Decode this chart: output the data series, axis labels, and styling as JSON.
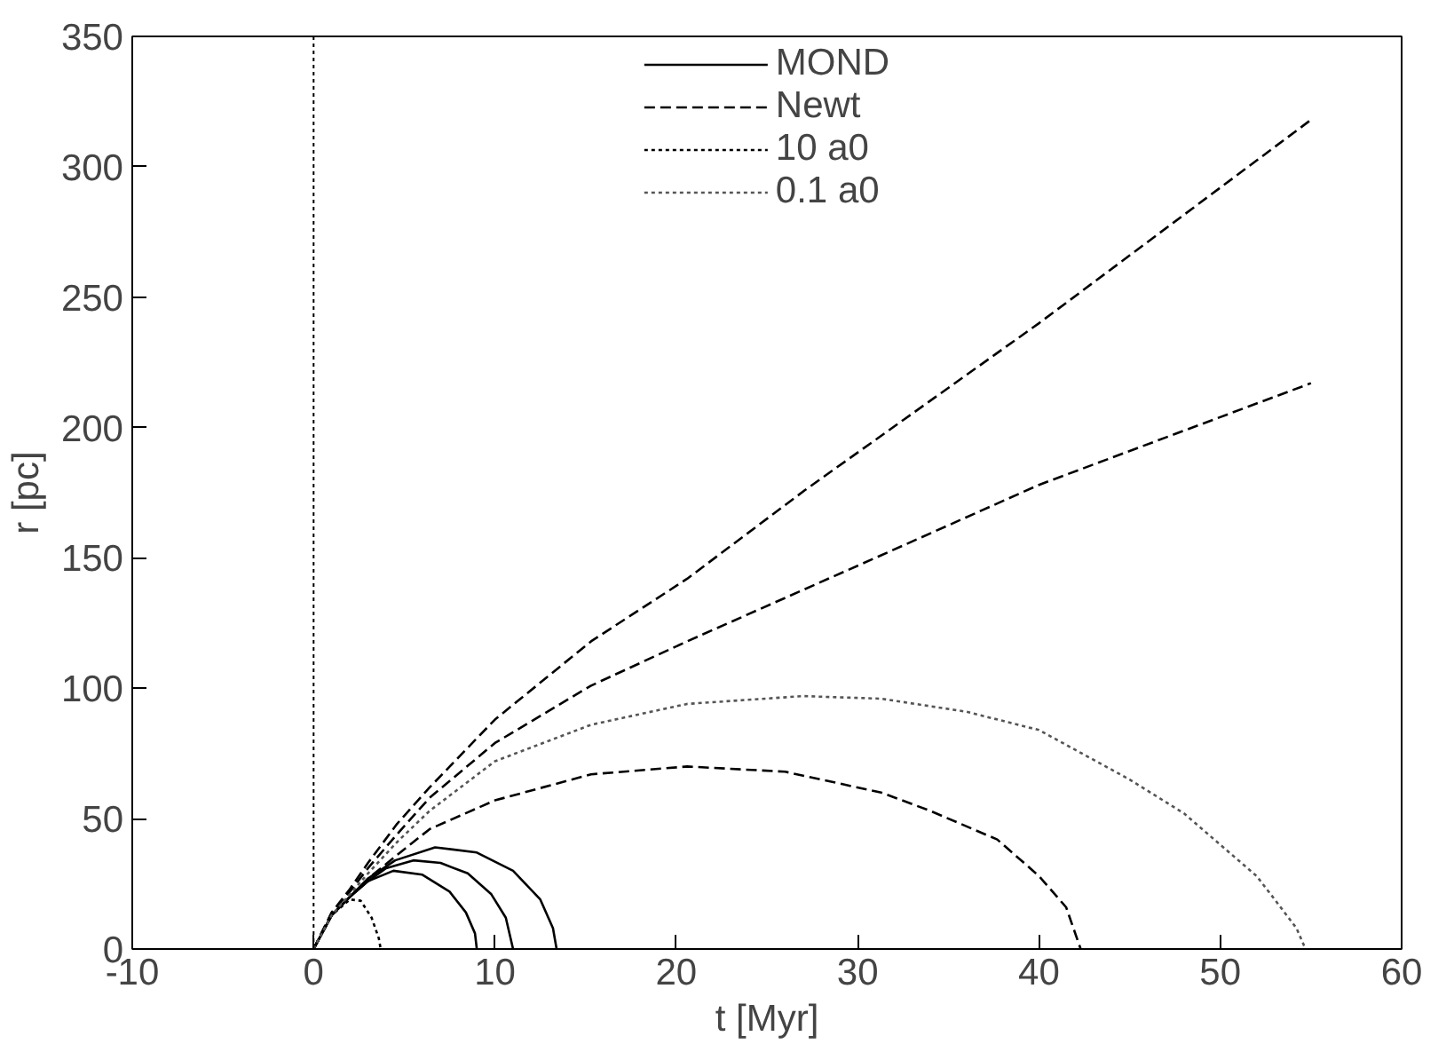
{
  "chart_data": {
    "type": "line",
    "xlabel": "t [Myr]",
    "ylabel": "r [pc]",
    "xlim": [
      -10,
      60
    ],
    "ylim": [
      0,
      350
    ],
    "xticks": [
      -10,
      0,
      10,
      20,
      30,
      40,
      50,
      60
    ],
    "yticks": [
      0,
      50,
      100,
      150,
      200,
      250,
      300,
      350
    ],
    "grid": false,
    "legend": "top",
    "marker": "none",
    "ref_lines": [
      {
        "axis": "x",
        "value": 0,
        "color": "#000000",
        "line_style": "dotted"
      }
    ],
    "series": [
      {
        "name": "MOND",
        "color": "#000000",
        "line_style": "solid",
        "x": [
          0,
          1,
          2,
          3,
          4.4,
          6,
          7.5,
          8.4,
          8.9,
          9
        ],
        "values": [
          0,
          13,
          20,
          26,
          30,
          28.5,
          22,
          14,
          6,
          0
        ]
      },
      {
        "color": "#000000",
        "line_style": "solid",
        "x": [
          0,
          1,
          2,
          3,
          4,
          5.5,
          7,
          8.5,
          9.8,
          10.6,
          11
        ],
        "values": [
          0,
          13,
          20,
          26,
          31,
          34,
          33,
          29,
          21,
          12,
          0
        ]
      },
      {
        "color": "#000000",
        "line_style": "solid",
        "x": [
          0,
          1,
          2,
          3,
          4.5,
          6.7,
          9,
          11,
          12.5,
          13.2,
          13.4
        ],
        "values": [
          0,
          13,
          20,
          27,
          34,
          39,
          37,
          30,
          19,
          8,
          0
        ]
      },
      {
        "name": "Newt",
        "color": "#000000",
        "line_style": "dashed",
        "x": [
          0,
          1,
          2,
          3,
          4.6,
          6.4,
          10,
          15.3,
          20.6,
          27.1,
          40,
          55
        ],
        "values": [
          0,
          14,
          23,
          33,
          48,
          62,
          88,
          118,
          142,
          176,
          240,
          318
        ]
      },
      {
        "color": "#000000",
        "line_style": "dashed",
        "x": [
          0,
          1,
          2,
          3,
          4.6,
          6.4,
          10,
          15.3,
          20.6,
          31.3,
          40,
          55
        ],
        "values": [
          0,
          14,
          22,
          31,
          44,
          58,
          79,
          101,
          118,
          151,
          178,
          217
        ]
      },
      {
        "color": "#000000",
        "line_style": "dashed",
        "x": [
          0,
          1,
          2,
          3,
          4.6,
          6.4,
          10,
          15.3,
          20.6,
          26,
          31.3,
          34,
          37.7,
          40,
          41.5,
          42.3
        ],
        "values": [
          0,
          13,
          20,
          27,
          36,
          46,
          57,
          67,
          70,
          68,
          60,
          53,
          42,
          28,
          16,
          0
        ]
      },
      {
        "name": "10 a0",
        "color": "#000000",
        "line_style": "dotted",
        "x": [
          0,
          1,
          2,
          2.6,
          3.2,
          3.6,
          3.7
        ],
        "values": [
          0,
          13,
          19,
          18.5,
          12,
          4,
          0
        ]
      },
      {
        "name": "0.1 a0",
        "color": "#555555",
        "line_style": "dotted",
        "x": [
          0,
          1,
          2,
          3,
          4.6,
          6.4,
          10,
          15.3,
          20.6,
          27,
          31.3,
          36,
          40,
          45,
          48,
          50,
          52,
          53,
          54.2,
          54.7
        ],
        "values": [
          0,
          13,
          21,
          29,
          41,
          53,
          72,
          86,
          94,
          97,
          96,
          91,
          84,
          65,
          52,
          40,
          28,
          19,
          8,
          0
        ]
      }
    ]
  }
}
